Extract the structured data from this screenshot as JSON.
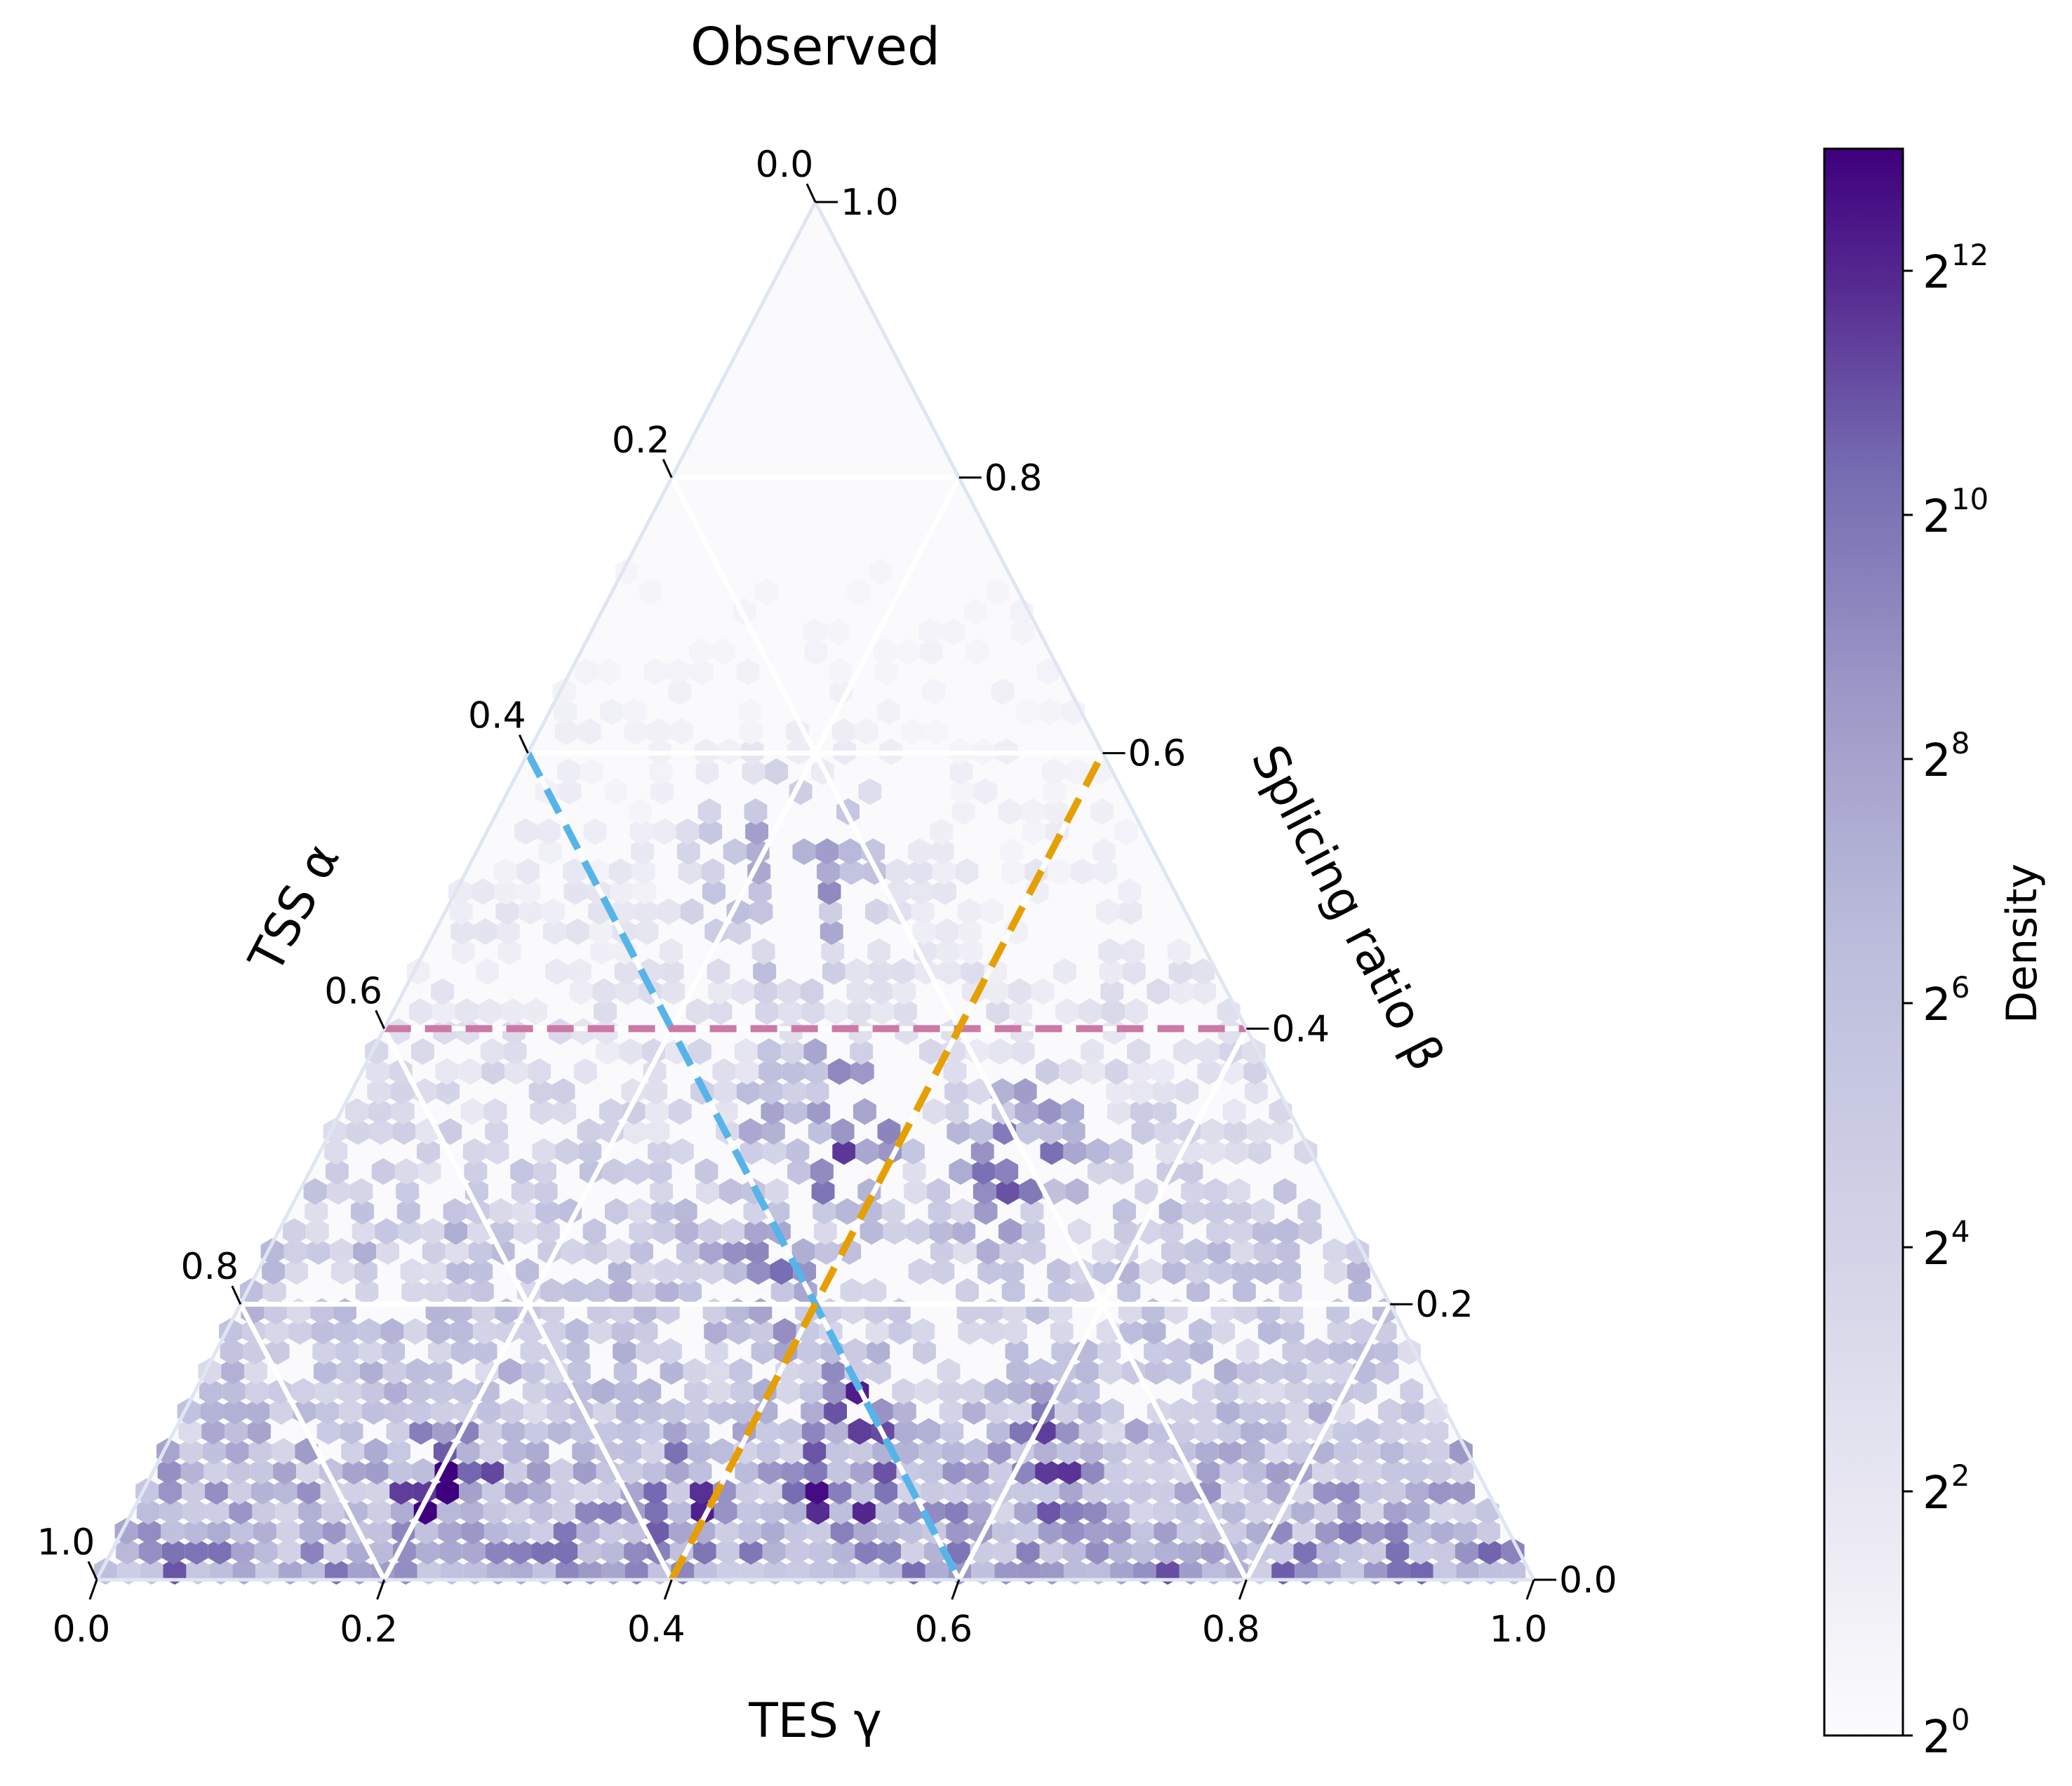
{
  "chart_data": {
    "type": "heatmap",
    "subtype": "ternary-hexbin",
    "title": "Observed",
    "axes": {
      "bottom": {
        "label": "TES γ",
        "ticks": [
          "0.0",
          "0.2",
          "0.4",
          "0.6",
          "0.8",
          "1.0"
        ]
      },
      "left": {
        "label": "TSS α",
        "ticks": [
          "0.0",
          "0.2",
          "0.4",
          "0.6",
          "0.8",
          "1.0"
        ]
      },
      "right": {
        "label": "Splicing ratio β",
        "ticks": [
          "0.0",
          "0.2",
          "0.4",
          "0.6",
          "0.8",
          "1.0"
        ]
      }
    },
    "grid": true,
    "reference_lines": [
      {
        "description": "constant TSS α",
        "alpha": 0.4,
        "color": "#56b4e9",
        "style": "dashed"
      },
      {
        "description": "constant splicing ratio β",
        "beta": 0.4,
        "color": "#cc79a7",
        "style": "dashed"
      },
      {
        "description": "constant TES γ",
        "gamma": 0.4,
        "color": "#e69f00",
        "style": "dashed"
      }
    ],
    "density_hotspots": [
      {
        "alpha": 0.73,
        "beta": 0.06,
        "gamma": 0.21,
        "log2_density": 12.2
      },
      {
        "alpha": 0.45,
        "beta": 0.06,
        "gamma": 0.49,
        "log2_density": 11.5
      },
      {
        "alpha": 0.42,
        "beta": 0.11,
        "gamma": 0.47,
        "log2_density": 11.3
      },
      {
        "alpha": 0.33,
        "beta": 0.32,
        "gamma": 0.35,
        "log2_density": 11.0
      },
      {
        "alpha": 0.57,
        "beta": 0.05,
        "gamma": 0.38,
        "log2_density": 10.8
      },
      {
        "alpha": 0.3,
        "beta": 0.08,
        "gamma": 0.62,
        "log2_density": 10.5
      },
      {
        "alpha": 0.27,
        "beta": 0.5,
        "gamma": 0.23,
        "log2_density": 9.5
      },
      {
        "alpha": 0.2,
        "beta": 0.3,
        "gamma": 0.5,
        "log2_density": 10.2
      },
      {
        "alpha": 0.44,
        "beta": 0.2,
        "gamma": 0.36,
        "log2_density": 10.3
      },
      {
        "alpha": 0.08,
        "beta": 0.05,
        "gamma": 0.87,
        "log2_density": 8.0
      }
    ],
    "colorbar": {
      "label": "Density",
      "scale": "log2",
      "range": [
        0,
        13
      ],
      "tick_exponents": [
        "0",
        "2",
        "4",
        "6",
        "8",
        "10",
        "12"
      ],
      "colors": {
        "low": "#fcfbfd",
        "mid": "#9e9ac8",
        "high": "#3f007d"
      }
    }
  }
}
